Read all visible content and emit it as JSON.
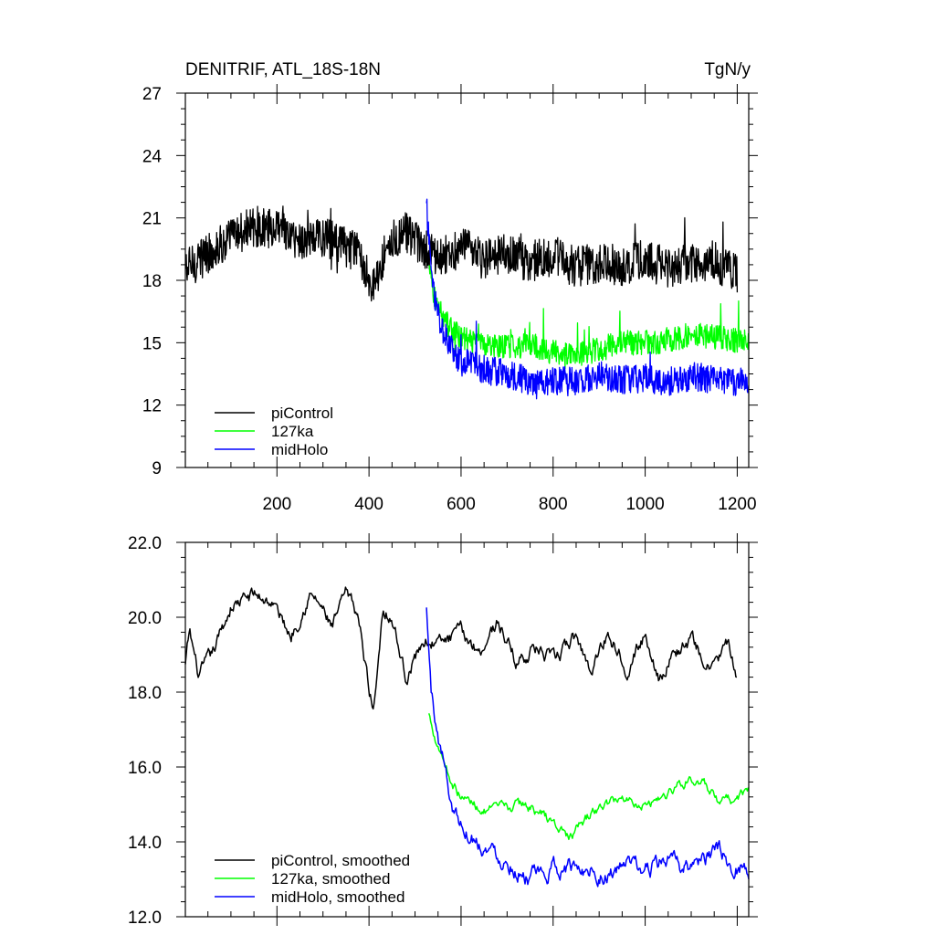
{
  "chart_data": [
    {
      "type": "line",
      "title": "DENITRIF, ATL_18S-18N",
      "units": "TgN/y",
      "xlabel": "",
      "ylabel": "",
      "xlim": [
        1,
        1225
      ],
      "ylim": [
        9,
        27
      ],
      "xticks": [
        200,
        400,
        600,
        800,
        1000,
        1200
      ],
      "xtick_labels": [
        "200",
        "400",
        "600",
        "800",
        "1000",
        "1200"
      ],
      "yticks": [
        9,
        12,
        15,
        18,
        21,
        24,
        27
      ],
      "ytick_labels": [
        "9",
        "12",
        "15",
        "18",
        "21",
        "24",
        "27"
      ],
      "grid": false,
      "legend_position": "bottom-left",
      "series": [
        {
          "name": "piControl",
          "color": "#000000",
          "x_range": [
            1,
            1200
          ],
          "x": [
            1,
            50,
            100,
            150,
            200,
            250,
            300,
            350,
            380,
            410,
            440,
            480,
            520,
            560,
            600,
            650,
            700,
            750,
            800,
            850,
            900,
            950,
            1000,
            1050,
            1100,
            1150,
            1200
          ],
          "values": [
            18.5,
            19.3,
            20.0,
            20.6,
            20.4,
            19.9,
            20.1,
            19.6,
            19.3,
            17.6,
            19.8,
            20.3,
            19.4,
            19.2,
            19.6,
            19.0,
            19.3,
            18.9,
            19.2,
            18.6,
            18.9,
            18.7,
            19.0,
            18.6,
            18.8,
            18.9,
            18.2
          ],
          "noise": 1.0
        },
        {
          "name": "127ka",
          "color": "#00ff00",
          "x_range": [
            530,
            1225
          ],
          "x": [
            530,
            545,
            560,
            580,
            600,
            650,
            700,
            750,
            800,
            850,
            900,
            950,
            1000,
            1050,
            1100,
            1150,
            1200,
            1225
          ],
          "values": [
            18.5,
            17.0,
            16.3,
            15.6,
            15.2,
            14.9,
            14.8,
            14.9,
            14.6,
            14.4,
            14.7,
            15.0,
            15.0,
            15.1,
            15.4,
            15.3,
            15.1,
            15.3
          ],
          "noise": 0.6
        },
        {
          "name": "midHolo",
          "color": "#0000ff",
          "x_range": [
            525,
            1225
          ],
          "x": [
            525,
            540,
            555,
            575,
            600,
            650,
            700,
            750,
            800,
            850,
            900,
            950,
            1000,
            1050,
            1100,
            1150,
            1200,
            1225
          ],
          "values": [
            21.5,
            17.5,
            15.8,
            14.9,
            14.1,
            13.7,
            13.5,
            13.1,
            13.2,
            13.1,
            13.4,
            13.2,
            13.3,
            13.1,
            13.4,
            13.2,
            13.1,
            13.2
          ],
          "noise": 0.7
        }
      ]
    },
    {
      "type": "line",
      "title": "",
      "xlabel": "",
      "ylabel": "",
      "xlim": [
        1,
        1225
      ],
      "ylim": [
        12.0,
        22.0
      ],
      "xticks": [
        200,
        400,
        600,
        800,
        1000,
        1200
      ],
      "yticks": [
        12.0,
        14.0,
        16.0,
        18.0,
        20.0,
        22.0
      ],
      "ytick_labels": [
        "12.0",
        "14.0",
        "16.0",
        "18.0",
        "20.0",
        "22.0"
      ],
      "grid": false,
      "legend_position": "bottom-left",
      "series": [
        {
          "name": "piControl, smoothed",
          "color": "#000000",
          "x_range": [
            1,
            1200
          ],
          "x": [
            1,
            10,
            30,
            60,
            100,
            150,
            190,
            230,
            270,
            290,
            320,
            350,
            375,
            395,
            410,
            430,
            450,
            480,
            520,
            560,
            600,
            640,
            680,
            720,
            760,
            800,
            850,
            880,
            920,
            960,
            1000,
            1030,
            1060,
            1100,
            1140,
            1180,
            1200
          ],
          "values": [
            18.7,
            19.6,
            18.4,
            19.0,
            20.3,
            20.6,
            20.4,
            19.5,
            20.6,
            20.4,
            19.7,
            20.6,
            20.1,
            18.5,
            17.5,
            20.3,
            20.0,
            18.4,
            19.4,
            19.3,
            19.6,
            19.1,
            19.9,
            18.8,
            19.2,
            18.8,
            19.5,
            18.6,
            19.6,
            18.7,
            19.5,
            18.4,
            19.0,
            19.4,
            18.6,
            19.3,
            18.2
          ],
          "noise": 0.25
        },
        {
          "name": "127ka, smoothed",
          "color": "#00ff00",
          "x_range": [
            530,
            1225
          ],
          "x": [
            530,
            545,
            560,
            580,
            600,
            630,
            660,
            700,
            740,
            780,
            810,
            840,
            870,
            900,
            950,
            1000,
            1050,
            1080,
            1100,
            1130,
            1160,
            1190,
            1225
          ],
          "values": [
            17.4,
            16.8,
            16.3,
            15.6,
            15.2,
            15.0,
            14.8,
            14.9,
            15.0,
            14.7,
            14.4,
            14.1,
            14.6,
            14.9,
            15.2,
            15.0,
            15.3,
            15.6,
            15.7,
            15.5,
            15.0,
            15.1,
            15.4
          ],
          "noise": 0.18
        },
        {
          "name": "midHolo, smoothed",
          "color": "#0000ff",
          "x_range": [
            525,
            1225
          ],
          "x": [
            525,
            535,
            550,
            565,
            580,
            600,
            630,
            660,
            700,
            740,
            780,
            800,
            840,
            880,
            920,
            960,
            1000,
            1040,
            1080,
            1120,
            1160,
            1190,
            1225
          ],
          "values": [
            20.2,
            18.0,
            16.8,
            16.0,
            15.0,
            14.5,
            14.1,
            13.8,
            13.5,
            13.1,
            13.0,
            13.3,
            13.3,
            13.3,
            13.1,
            13.4,
            13.2,
            13.5,
            13.3,
            13.5,
            13.7,
            13.4,
            13.3
          ],
          "noise": 0.3
        }
      ]
    }
  ]
}
